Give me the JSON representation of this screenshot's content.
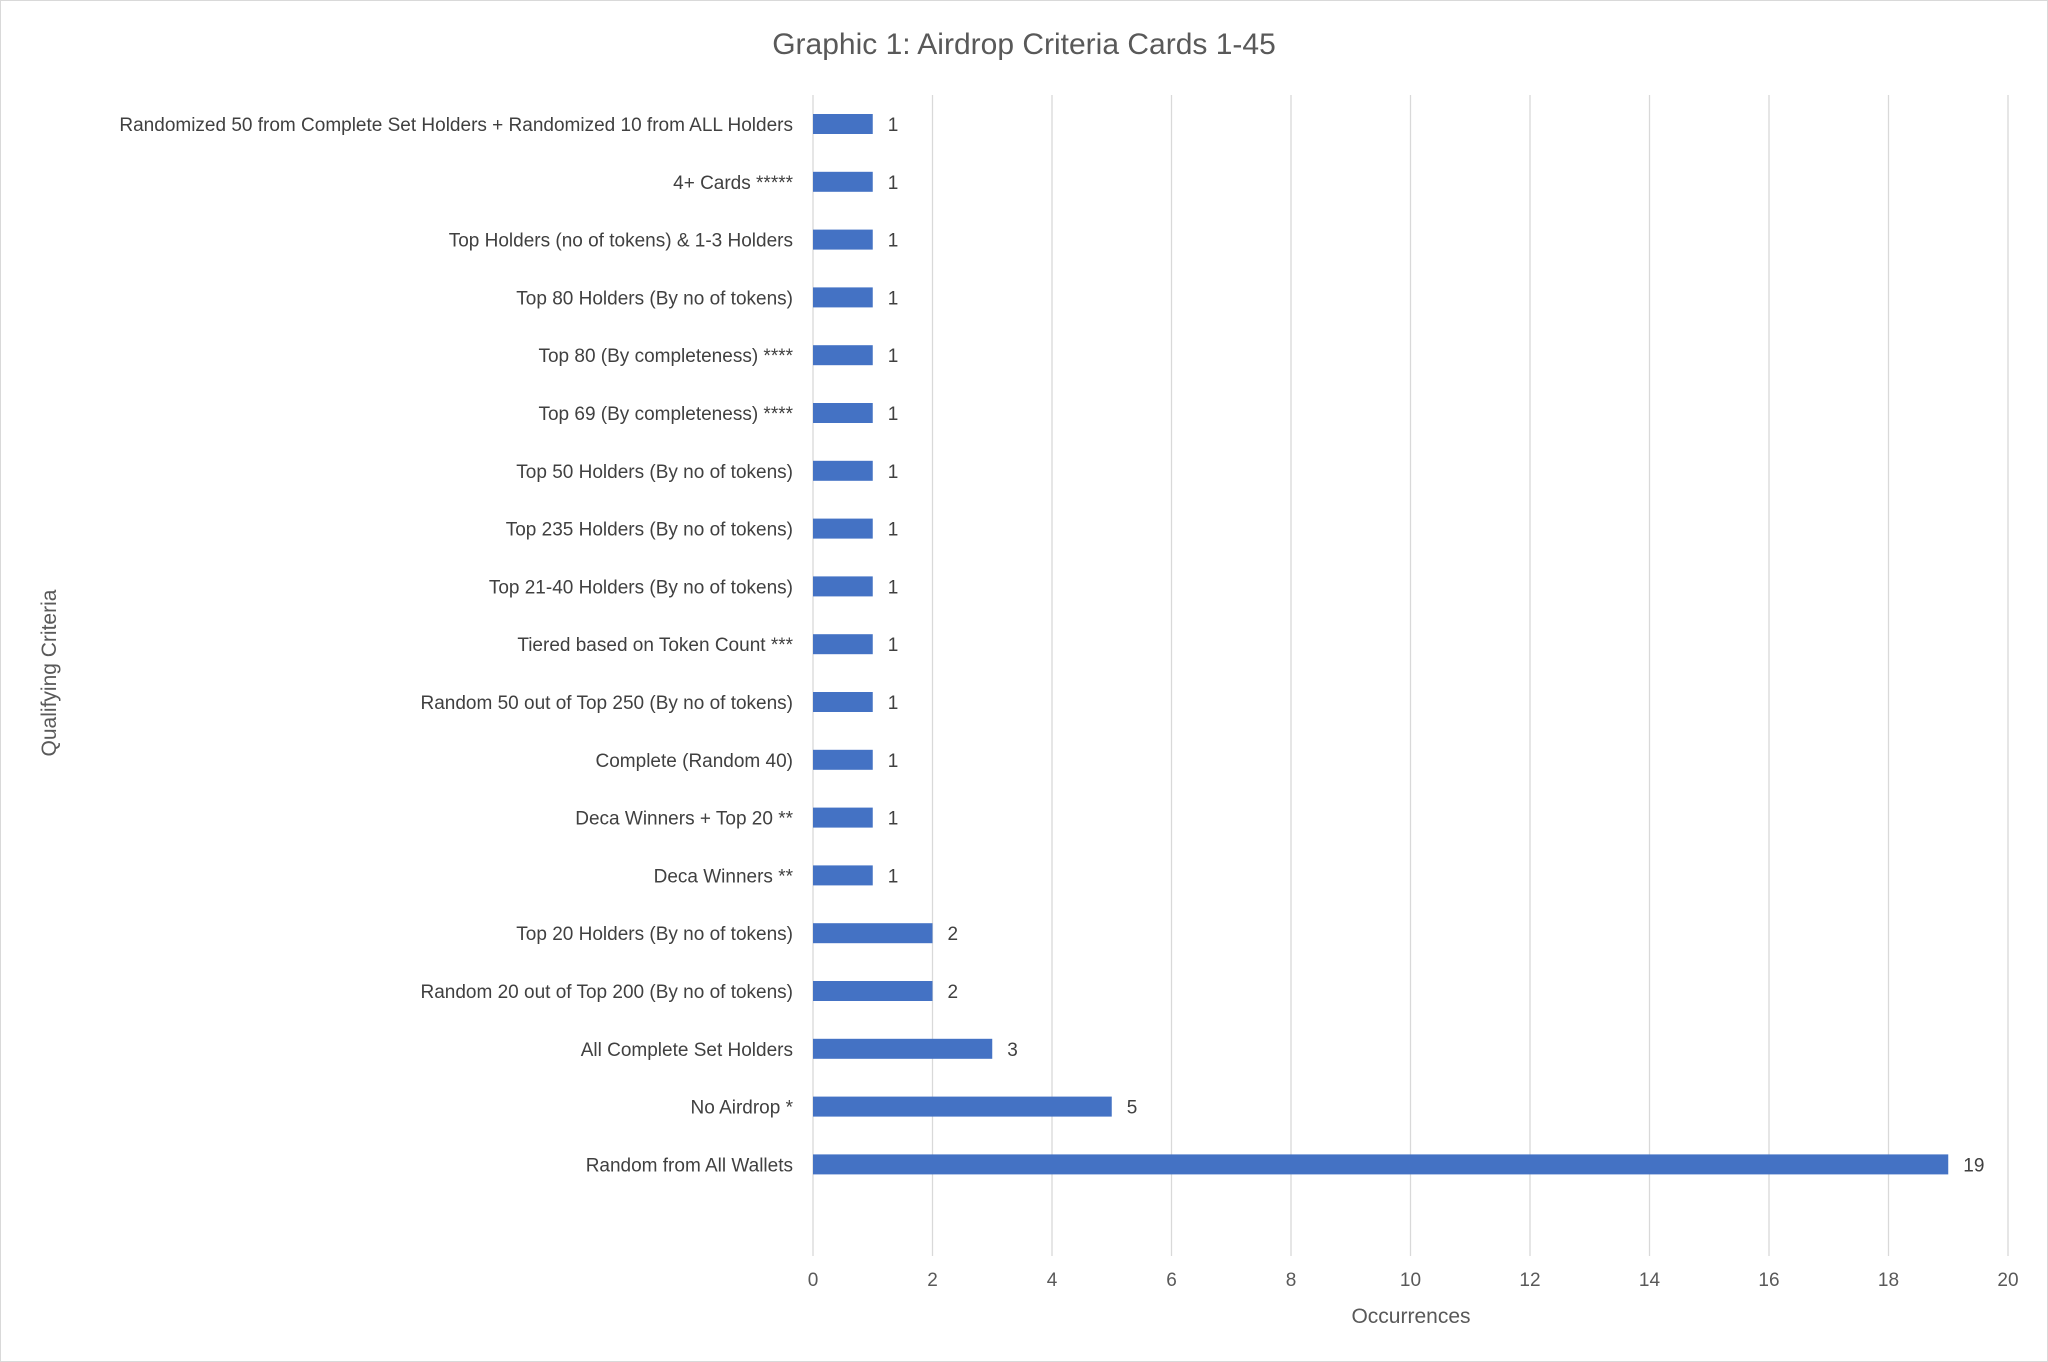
{
  "chart_data": {
    "type": "bar",
    "orientation": "horizontal",
    "title": "Graphic 1: Airdrop Criteria Cards 1-45",
    "xlabel": "Occurrences",
    "ylabel": "Qualifying Criteria",
    "xlim": [
      0,
      20
    ],
    "x_ticks": [
      0,
      2,
      4,
      6,
      8,
      10,
      12,
      14,
      16,
      18,
      20
    ],
    "grid": "vertical",
    "bar_color": "#4472c4",
    "data_labels": true,
    "categories": [
      "Randomized 50 from Complete Set Holders + Randomized 10 from ALL Holders",
      "4+ Cards *****",
      "Top Holders (no of tokens) & 1-3 Holders",
      "Top 80 Holders (By no of tokens)",
      "Top 80 (By completeness) ****",
      "Top 69 (By completeness) ****",
      "Top 50 Holders (By no of tokens)",
      "Top 235 Holders (By no of tokens)",
      "Top 21-40 Holders (By no of tokens)",
      "Tiered based on Token Count ***",
      "Random 50 out of Top 250 (By no of tokens)",
      "Complete (Random 40)",
      "Deca Winners + Top 20 **",
      "Deca Winners **",
      "Top 20 Holders (By no of tokens)",
      "Random 20 out of Top 200 (By no of tokens)",
      "All Complete Set Holders",
      "No Airdrop *",
      "Random from All Wallets"
    ],
    "values": [
      1,
      1,
      1,
      1,
      1,
      1,
      1,
      1,
      1,
      1,
      1,
      1,
      1,
      1,
      2,
      2,
      3,
      5,
      19
    ]
  }
}
